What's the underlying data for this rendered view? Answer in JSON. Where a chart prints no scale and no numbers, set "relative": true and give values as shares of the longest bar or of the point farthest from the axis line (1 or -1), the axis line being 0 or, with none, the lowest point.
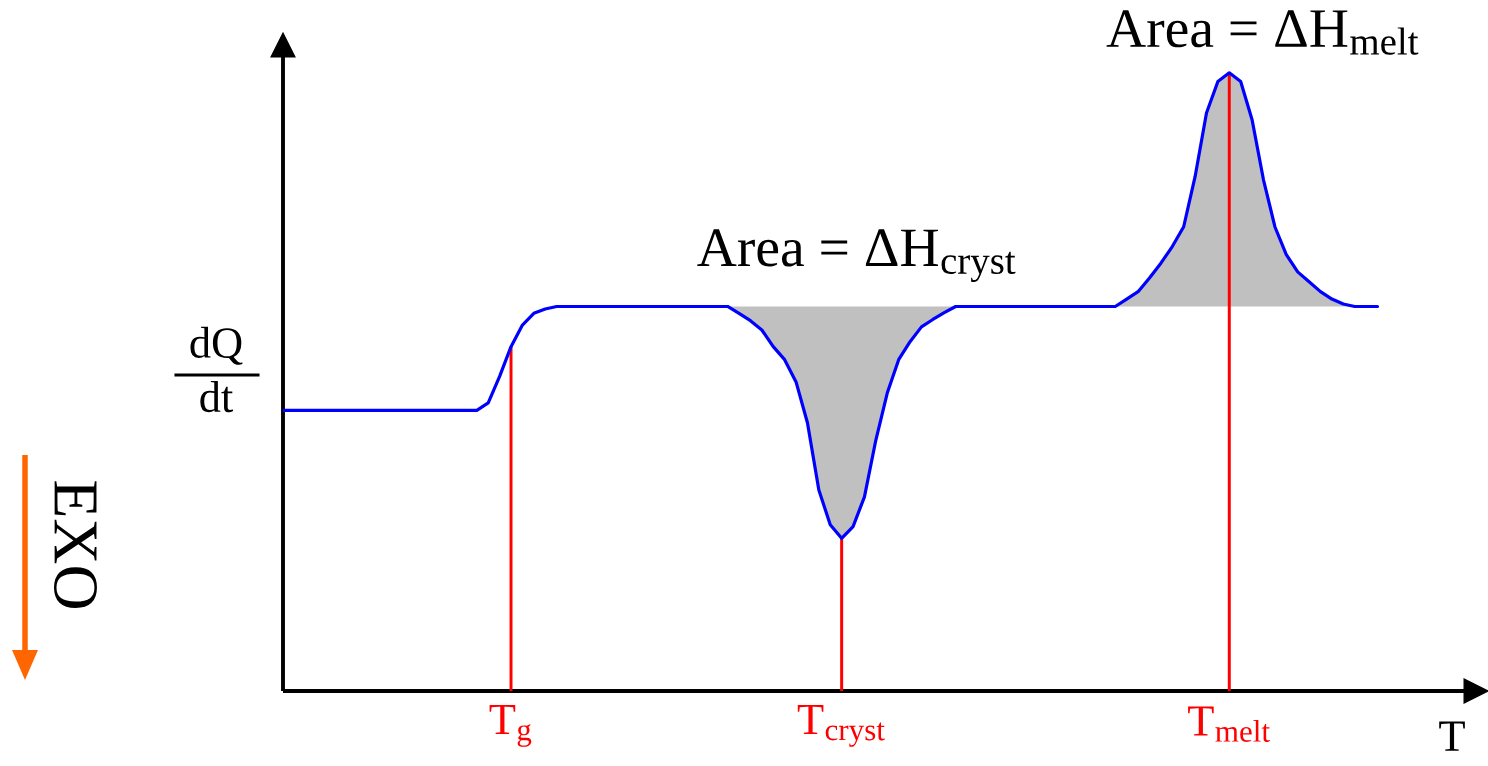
{
  "chart_data": {
    "type": "line",
    "relative": true,
    "xlabel": "T",
    "ylabel": "dQ\ndt",
    "tick_labels": "x",
    "annotations": [
      "Area = ΔH$_{cryst}$",
      "Area = ΔH$_{melt}$",
      "EXO"
    ],
    "categories": [
      null,
      null,
      null,
      null,
      null,
      null,
      null,
      null,
      null,
      null,
      null,
      null,
      null,
      null,
      null,
      null,
      null,
      null,
      null,
      null,
      "T$_{g}$",
      null,
      null,
      null,
      null,
      null,
      null,
      null,
      null,
      null,
      null,
      null,
      null,
      null,
      null,
      null,
      null,
      null,
      null,
      null,
      null,
      null,
      null,
      null,
      null,
      null,
      null,
      null,
      null,
      "T$_{cryst}$",
      null,
      null,
      null,
      null,
      null,
      null,
      null,
      null,
      null,
      null,
      null,
      null,
      null,
      null,
      null,
      null,
      null,
      null,
      null,
      null,
      null,
      null,
      null,
      null,
      null,
      null,
      null,
      null,
      null,
      null,
      null,
      null,
      null,
      "T$_{melt}$",
      null,
      null,
      null,
      null,
      null,
      null,
      null,
      null,
      null,
      null,
      null,
      null,
      null
    ],
    "series": [
      {
        "color": "#0000ff",
        "values": [
          0.454,
          0.454,
          0.454,
          0.454,
          0.454,
          0.454,
          0.454,
          0.454,
          0.454,
          0.454,
          0.454,
          0.454,
          0.454,
          0.454,
          0.454,
          0.454,
          0.454,
          0.454,
          0.466,
          0.509,
          0.557,
          0.592,
          0.611,
          0.618,
          0.622,
          0.622,
          0.622,
          0.622,
          0.622,
          0.622,
          0.622,
          0.622,
          0.622,
          0.622,
          0.622,
          0.622,
          0.622,
          0.622,
          0.622,
          0.622,
          0.611,
          0.599,
          0.584,
          0.557,
          0.536,
          0.5,
          0.434,
          0.325,
          0.269,
          0.247,
          0.266,
          0.314,
          0.406,
          0.482,
          0.536,
          0.565,
          0.589,
          0.601,
          0.612,
          0.622,
          0.622,
          0.622,
          0.622,
          0.622,
          0.622,
          0.622,
          0.622,
          0.622,
          0.622,
          0.622,
          0.622,
          0.622,
          0.622,
          0.622,
          0.634,
          0.646,
          0.668,
          0.692,
          0.719,
          0.751,
          0.832,
          0.935,
          0.986,
          1,
          0.986,
          0.924,
          0.827,
          0.751,
          0.706,
          0.678,
          0.662,
          0.646,
          0.634,
          0.626,
          0.622,
          0.622,
          0.622
        ],
        "lower": [
          null,
          null,
          null,
          null,
          null,
          null,
          null,
          null,
          null,
          null,
          null,
          null,
          null,
          null,
          null,
          null,
          null,
          null,
          null,
          null,
          null,
          null,
          null,
          null,
          null,
          null,
          null,
          null,
          null,
          null,
          null,
          null,
          null,
          null,
          null,
          null,
          null,
          null,
          null,
          0.622,
          0.611,
          0.599,
          0.584,
          0.557,
          0.536,
          0.5,
          0.434,
          0.325,
          0.269,
          0.247,
          0.266,
          0.314,
          0.406,
          0.482,
          0.536,
          0.565,
          0.589,
          0.601,
          0.612,
          0.622,
          null,
          null,
          null,
          null,
          null,
          null,
          null,
          null,
          null,
          null,
          null,
          null,
          null,
          0.622,
          0.622,
          0.622,
          0.622,
          0.622,
          0.622,
          0.622,
          0.622,
          0.622,
          0.622,
          0.622,
          0.622,
          0.622,
          0.622,
          0.622,
          0.622,
          0.622,
          0.622,
          0.622,
          0.622,
          0.622,
          0.622,
          null,
          null
        ],
        "upper": [
          null,
          null,
          null,
          null,
          null,
          null,
          null,
          null,
          null,
          null,
          null,
          null,
          null,
          null,
          null,
          null,
          null,
          null,
          null,
          null,
          null,
          null,
          null,
          null,
          null,
          null,
          null,
          null,
          null,
          null,
          null,
          null,
          null,
          null,
          null,
          null,
          null,
          null,
          null,
          0.622,
          0.622,
          0.622,
          0.622,
          0.622,
          0.622,
          0.622,
          0.622,
          0.622,
          0.622,
          0.622,
          0.622,
          0.622,
          0.622,
          0.622,
          0.622,
          0.622,
          0.622,
          0.622,
          0.622,
          0.622,
          null,
          null,
          null,
          null,
          null,
          null,
          null,
          null,
          null,
          null,
          null,
          null,
          null,
          0.622,
          0.634,
          0.646,
          0.668,
          0.692,
          0.719,
          0.751,
          0.832,
          0.935,
          0.986,
          1,
          0.986,
          0.924,
          0.827,
          0.751,
          0.706,
          0.678,
          0.662,
          0.646,
          0.634,
          0.626,
          0.622,
          null,
          null
        ]
      },
      {
        "type": "bar",
        "color": "#ff0000",
        "values": [
          null,
          null,
          null,
          null,
          null,
          null,
          null,
          null,
          null,
          null,
          null,
          null,
          null,
          null,
          null,
          null,
          null,
          null,
          null,
          null,
          0.557,
          null,
          null,
          null,
          null,
          null,
          null,
          null,
          null,
          null,
          null,
          null,
          null,
          null,
          null,
          null,
          null,
          null,
          null,
          null,
          null,
          null,
          null,
          null,
          null,
          null,
          null,
          null,
          null,
          0.247,
          null,
          null,
          null,
          null,
          null,
          null,
          null,
          null,
          null,
          null,
          null,
          null,
          null,
          null,
          null,
          null,
          null,
          null,
          null,
          null,
          null,
          null,
          null,
          null,
          null,
          null,
          null,
          null,
          null,
          null,
          null,
          null,
          null,
          1,
          null,
          null,
          null,
          null,
          null,
          null,
          null,
          null,
          null,
          null,
          null,
          null,
          null
        ]
      }
    ]
  }
}
